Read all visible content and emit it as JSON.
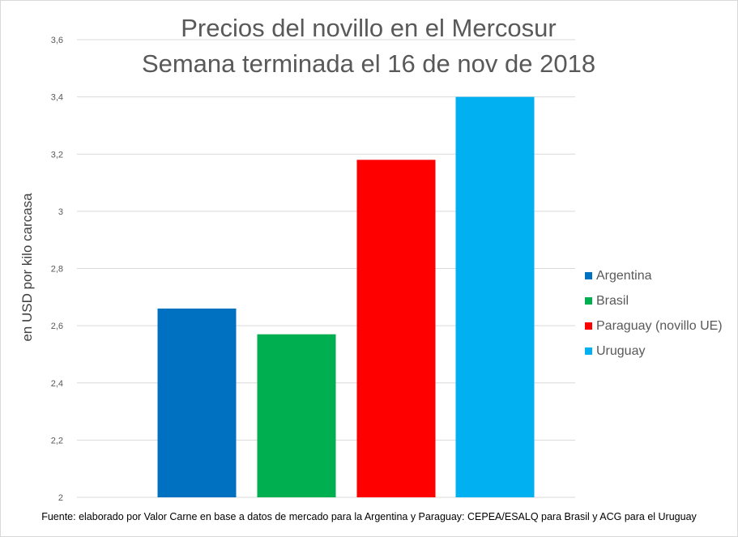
{
  "chart_data": {
    "type": "bar",
    "title": "Precios del novillo en el Mercosur",
    "subtitle": "Semana terminada el 16 de nov de 2018",
    "xlabel": "",
    "ylabel": "en USD por kilo carcasa",
    "ylim": [
      2,
      3.6
    ],
    "yticks": [
      "2",
      "2,2",
      "2,4",
      "2,6",
      "2,8",
      "3",
      "3,2",
      "3,4",
      "3,6"
    ],
    "grid": true,
    "legend_position": "right",
    "series": [
      {
        "name": "Argentina",
        "value": 2.66,
        "color": "#0070C0"
      },
      {
        "name": "Brasil",
        "value": 2.57,
        "color": "#00B050"
      },
      {
        "name": "Paraguay (novillo UE)",
        "value": 3.18,
        "color": "#FF0000"
      },
      {
        "name": "Uruguay",
        "value": 3.4,
        "color": "#00B0F0"
      }
    ],
    "footnote": "Fuente: elaborado por Valor Carne en base a datos de mercado para la Argentina y Paraguay: CEPEA/ESALQ para Brasil y ACG para el Uruguay"
  }
}
